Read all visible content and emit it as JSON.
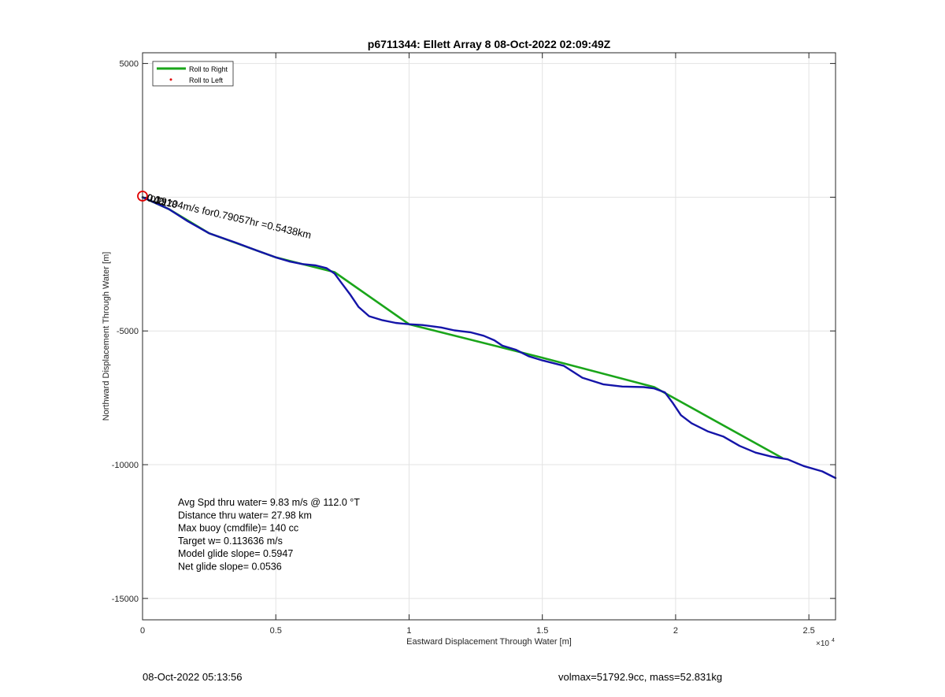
{
  "figure": {
    "footer_left": "08-Oct-2022 05:13:56",
    "footer_right": "volmax=51792.9cc, mass=52.831kg"
  },
  "chart_data": {
    "type": "line",
    "title": "p6711344: Ellett Array 8 08-Oct-2022 02:09:49Z",
    "xlabel": "Eastward Displacement Through Water [m]",
    "ylabel": "Northward Displacement Through Water [m]",
    "x_exponent_label": "×10",
    "x_exponent_power": "4",
    "xlim": [
      0,
      26000
    ],
    "ylim": [
      -15800,
      5400
    ],
    "x_ticks": [
      0,
      5000,
      10000,
      15000,
      20000,
      25000
    ],
    "x_tick_labels": [
      "0",
      "0.5",
      "1",
      "1.5",
      "2",
      "2.5"
    ],
    "y_ticks": [
      5000,
      0,
      -5000,
      -10000,
      -15000
    ],
    "y_tick_labels": [
      "5000",
      "",
      "-5000",
      "-10000",
      "-15000"
    ],
    "grid": true,
    "legend": {
      "location": "top-left",
      "entries": [
        {
          "label": "Roll to Right",
          "color": "#1aa51a",
          "marker": "line"
        },
        {
          "label": "Roll to Left",
          "color": "#e00000",
          "marker": "dot"
        }
      ]
    },
    "series": [
      {
        "color": "#1aa51a",
        "points": [
          [
            0,
            0
          ],
          [
            1000,
            -450
          ],
          [
            2500,
            -1350
          ],
          [
            5000,
            -2250
          ],
          [
            7200,
            -2800
          ],
          [
            10000,
            -4750
          ],
          [
            15000,
            -6000
          ],
          [
            19200,
            -7100
          ],
          [
            24000,
            -9750
          ]
        ]
      },
      {
        "color": "#1414a8",
        "points": [
          [
            0,
            0
          ],
          [
            1000,
            -450
          ],
          [
            1700,
            -900
          ],
          [
            2500,
            -1350
          ],
          [
            3500,
            -1700
          ],
          [
            4300,
            -2000
          ],
          [
            5000,
            -2250
          ],
          [
            5500,
            -2400
          ],
          [
            6000,
            -2500
          ],
          [
            6500,
            -2550
          ],
          [
            6900,
            -2650
          ],
          [
            7200,
            -2850
          ],
          [
            7500,
            -3250
          ],
          [
            7800,
            -3650
          ],
          [
            8100,
            -4100
          ],
          [
            8500,
            -4450
          ],
          [
            9000,
            -4600
          ],
          [
            9500,
            -4700
          ],
          [
            10000,
            -4750
          ],
          [
            10500,
            -4780
          ],
          [
            11200,
            -4870
          ],
          [
            11700,
            -4980
          ],
          [
            12300,
            -5050
          ],
          [
            12800,
            -5180
          ],
          [
            13200,
            -5350
          ],
          [
            13500,
            -5550
          ],
          [
            14000,
            -5700
          ],
          [
            14500,
            -5950
          ],
          [
            15000,
            -6100
          ],
          [
            15800,
            -6300
          ],
          [
            16500,
            -6750
          ],
          [
            17300,
            -7000
          ],
          [
            18000,
            -7080
          ],
          [
            18800,
            -7100
          ],
          [
            19200,
            -7150
          ],
          [
            19600,
            -7300
          ],
          [
            19900,
            -7700
          ],
          [
            20200,
            -8150
          ],
          [
            20600,
            -8450
          ],
          [
            21200,
            -8750
          ],
          [
            21800,
            -8950
          ],
          [
            22400,
            -9300
          ],
          [
            23000,
            -9550
          ],
          [
            23600,
            -9700
          ],
          [
            24200,
            -9800
          ],
          [
            24800,
            -10050
          ],
          [
            25500,
            -10250
          ],
          [
            26000,
            -10500
          ]
        ]
      }
    ],
    "annotations": {
      "start_label": "0.19104m/s for0.79057hr =0.5438km",
      "start_label_angle": 13,
      "start_marker_color": "#e00000",
      "stats": [
        "Avg Spd thru water=  9.83 m/s @ 112.0 °T",
        "Distance thru water= 27.98 km",
        "Max buoy (cmdfile)= 140 cc",
        "Target w= 0.113636 m/s",
        "Model glide slope= 0.5947",
        "Net glide slope= 0.0536"
      ]
    }
  }
}
